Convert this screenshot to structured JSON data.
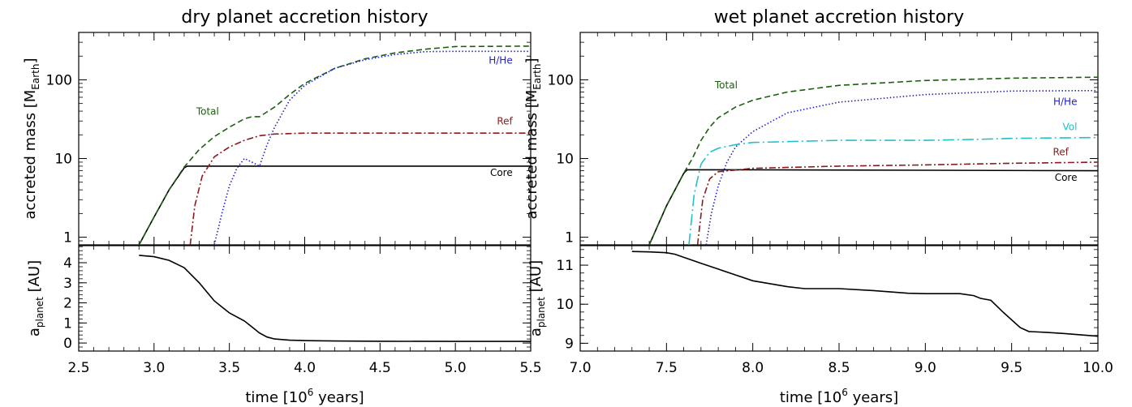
{
  "colors": {
    "Total": "#1a5e0e",
    "H/He": "#1f1fd6",
    "Ref": "#8b1a1a",
    "Vol": "#22c1c8",
    "Core": "#000000"
  },
  "chart_data": [
    {
      "type": "line",
      "title": "dry planet accretion history",
      "xlabel": "time [10",
      "xlabel_sup": "6",
      "xlabel_tail": " years]",
      "xlim": [
        2.5,
        5.5
      ],
      "xticks": [
        2.5,
        3.0,
        3.5,
        4.0,
        4.5,
        5.0,
        5.5
      ],
      "xticklabels": [
        "2.5",
        "3.0",
        "3.5",
        "4.0",
        "4.5",
        "5.0",
        "5.5"
      ],
      "mass_panel": {
        "ylabel": "accreted mass [M",
        "ylabel_sub": "Earth",
        "ylabel_tail": "]",
        "yscale": "log",
        "ylim": [
          0.8,
          400
        ],
        "yticks": [
          1,
          10,
          100
        ],
        "yticklabels": [
          "1",
          "10",
          "100"
        ],
        "series": [
          {
            "name": "Core",
            "style": "solid",
            "x": [
              2.9,
              3.0,
              3.1,
              3.2,
              3.22,
              5.5
            ],
            "y": [
              0.8,
              1.8,
              4.0,
              7.6,
              8.0,
              8.0
            ]
          },
          {
            "name": "Total",
            "style": "dashed",
            "x": [
              2.9,
              3.0,
              3.1,
              3.2,
              3.3,
              3.4,
              3.5,
              3.6,
              3.65,
              3.7,
              3.8,
              3.9,
              4.0,
              4.2,
              4.4,
              4.6,
              4.8,
              5.0,
              5.5
            ],
            "y": [
              0.8,
              1.8,
              4.0,
              7.8,
              13,
              19,
              25,
              32,
              34,
              34,
              45,
              65,
              90,
              140,
              185,
              220,
              245,
              265,
              268
            ]
          },
          {
            "name": "Ref",
            "style": "dashdot",
            "x": [
              3.24,
              3.27,
              3.32,
              3.4,
              3.5,
              3.6,
              3.7,
              3.8,
              4.0,
              4.5,
              5.0,
              5.5
            ],
            "y": [
              0.8,
              2.5,
              6.0,
              10.5,
              14,
              17,
              19.5,
              20.5,
              21,
              21,
              21,
              21
            ]
          },
          {
            "name": "H/He",
            "style": "dotted",
            "x": [
              3.4,
              3.45,
              3.5,
              3.55,
              3.6,
              3.65,
              3.7,
              3.75,
              3.8,
              3.9,
              4.0,
              4.2,
              4.4,
              4.6,
              4.8,
              5.0,
              5.5
            ],
            "y": [
              0.8,
              2.0,
              4.5,
              7.5,
              10,
              9.0,
              8.0,
              15,
              25,
              55,
              85,
              140,
              180,
              210,
              228,
              230,
              230
            ]
          }
        ],
        "labels": [
          {
            "series": "Total",
            "x": 3.28,
            "y": 36
          },
          {
            "series": "H/He",
            "x": 5.38,
            "y": 160
          },
          {
            "series": "Ref",
            "x": 5.38,
            "y": 27
          },
          {
            "series": "Core",
            "x": 5.38,
            "y": 6.0
          }
        ]
      },
      "orbit_panel": {
        "ylabel": "a",
        "ylabel_sub": "planet",
        "ylabel_tail": " [AU]",
        "ylim": [
          -0.4,
          4.85
        ],
        "yticks": [
          0,
          1,
          2,
          3,
          4
        ],
        "yticklabels": [
          "0",
          "1",
          "2",
          "3",
          "4"
        ],
        "series": [
          {
            "name": "Core",
            "style": "solid",
            "x": [
              2.9,
              3.0,
              3.1,
              3.2,
              3.3,
              3.4,
              3.5,
              3.6,
              3.65,
              3.7,
              3.75,
              3.8,
              3.9,
              4.0,
              4.2,
              4.5,
              5.0,
              5.5
            ],
            "y": [
              4.37,
              4.3,
              4.12,
              3.75,
              3.0,
              2.1,
              1.5,
              1.1,
              0.8,
              0.5,
              0.3,
              0.2,
              0.14,
              0.12,
              0.1,
              0.09,
              0.08,
              0.08
            ]
          }
        ]
      }
    },
    {
      "type": "line",
      "title": "wet planet accretion history",
      "xlabel": "time [10",
      "xlabel_sup": "6",
      "xlabel_tail": " years]",
      "xlim": [
        7.0,
        10.0
      ],
      "xticks": [
        7.0,
        7.5,
        8.0,
        8.5,
        9.0,
        9.5,
        10.0
      ],
      "xticklabels": [
        "7.0",
        "7.5",
        "8.0",
        "8.5",
        "9.0",
        "9.5",
        "10.0"
      ],
      "mass_panel": {
        "ylabel": "accreted mass [M",
        "ylabel_sub": "Earth",
        "ylabel_tail": "]",
        "yscale": "log",
        "ylim": [
          0.8,
          400
        ],
        "yticks": [
          1,
          10,
          100
        ],
        "yticklabels": [
          "1",
          "10",
          "100"
        ],
        "series": [
          {
            "name": "Core",
            "style": "solid",
            "x": [
              7.4,
              7.5,
              7.6,
              7.62,
              8.0,
              10.0
            ],
            "y": [
              0.8,
              2.5,
              6.5,
              7.2,
              7.2,
              7.0
            ]
          },
          {
            "name": "Total",
            "style": "dashed",
            "x": [
              7.4,
              7.5,
              7.6,
              7.65,
              7.7,
              7.75,
              7.8,
              7.9,
              8.0,
              8.2,
              8.5,
              9.0,
              9.5,
              10.0
            ],
            "y": [
              0.8,
              2.5,
              6.5,
              10,
              17,
              25,
              33,
              45,
              55,
              70,
              85,
              98,
              105,
              108
            ]
          },
          {
            "name": "H/He",
            "style": "dotted",
            "x": [
              7.73,
              7.76,
              7.8,
              7.85,
              7.9,
              8.0,
              8.2,
              8.5,
              9.0,
              9.5,
              10.0
            ],
            "y": [
              0.8,
              2.0,
              4.5,
              9,
              14,
              22,
              38,
              52,
              65,
              72,
              73
            ]
          },
          {
            "name": "Vol",
            "style": "dashlong",
            "x": [
              7.63,
              7.66,
              7.7,
              7.75,
              7.8,
              7.9,
              8.0,
              8.5,
              9.0,
              9.3,
              9.5,
              10.0
            ],
            "y": [
              0.8,
              3.5,
              8.5,
              12,
              13.5,
              15,
              16,
              17,
              17,
              17.5,
              18,
              18.5
            ]
          },
          {
            "name": "Ref",
            "style": "dashdot",
            "x": [
              7.68,
              7.71,
              7.75,
              7.8,
              8.0,
              8.5,
              9.0,
              9.5,
              10.0
            ],
            "y": [
              0.8,
              3.0,
              5.5,
              6.8,
              7.5,
              8.0,
              8.3,
              8.7,
              9.0
            ]
          }
        ],
        "labels": [
          {
            "series": "Total",
            "x": 7.78,
            "y": 78
          },
          {
            "series": "H/He",
            "x": 9.88,
            "y": 48
          },
          {
            "series": "Vol",
            "x": 9.88,
            "y": 23
          },
          {
            "series": "Ref",
            "x": 9.83,
            "y": 11
          },
          {
            "series": "Core",
            "x": 9.88,
            "y": 5.2
          }
        ]
      },
      "orbit_panel": {
        "ylabel": "a",
        "ylabel_sub": "planet",
        "ylabel_tail": " [AU]",
        "ylim": [
          8.8,
          11.5
        ],
        "yticks": [
          9,
          10,
          11
        ],
        "yticklabels": [
          "9",
          "10",
          "11"
        ],
        "series": [
          {
            "name": "Core",
            "style": "solid",
            "x": [
              7.3,
              7.4,
              7.5,
              7.55,
              7.6,
              7.7,
              7.8,
              7.9,
              8.0,
              8.2,
              8.3,
              8.5,
              8.7,
              8.9,
              9.0,
              9.2,
              9.28,
              9.32,
              9.38,
              9.45,
              9.55,
              9.6,
              9.7,
              9.8,
              10.0
            ],
            "y": [
              11.35,
              11.34,
              11.32,
              11.28,
              11.2,
              11.05,
              10.9,
              10.75,
              10.6,
              10.45,
              10.4,
              10.4,
              10.35,
              10.28,
              10.27,
              10.27,
              10.22,
              10.15,
              10.1,
              9.8,
              9.4,
              9.3,
              9.28,
              9.25,
              9.18
            ]
          }
        ]
      }
    }
  ]
}
